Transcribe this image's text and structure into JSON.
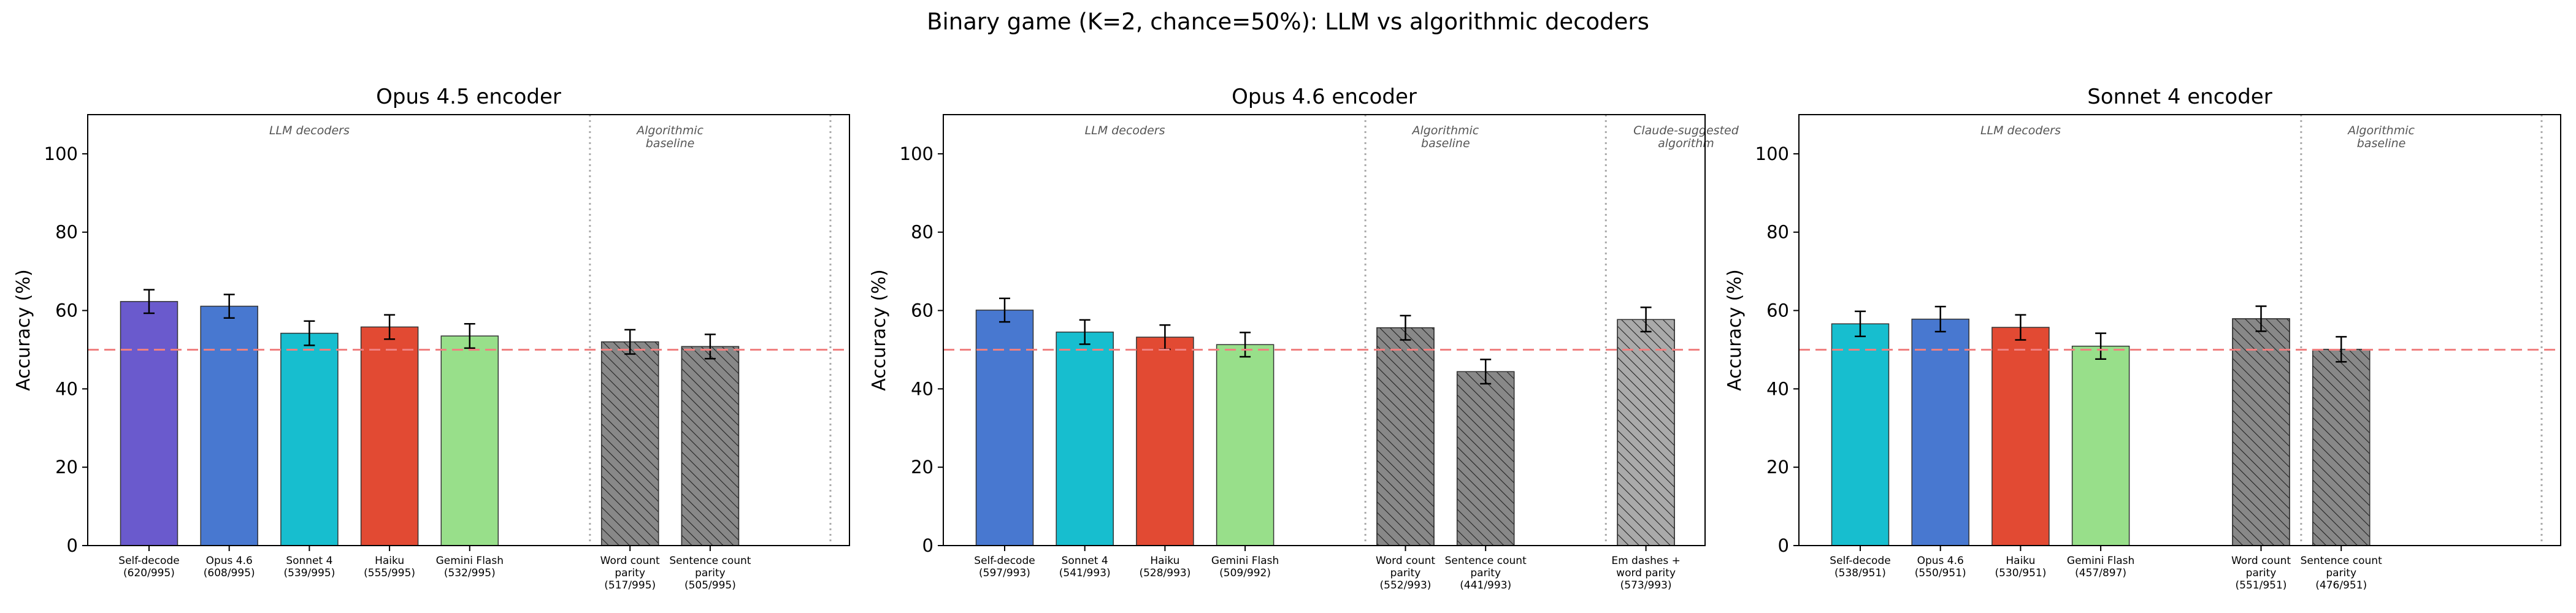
{
  "figure_title": "Binary game (K=2, chance=50%): LLM vs algorithmic decoders",
  "colors": {
    "purple": "#6a5acd",
    "blue": "#4878d0",
    "cyan": "#17becf",
    "red": "#e24a33",
    "green": "#98df8a",
    "gray": "#888888",
    "light_gray": "#aaaaaa",
    "chance_line": "#f08080"
  },
  "chart_data": [
    {
      "type": "bar",
      "title": "Opus 4.5 encoder",
      "ylabel": "Accuracy (%)",
      "xlabel": "",
      "ylim": [
        0,
        110
      ],
      "yticks": [
        0,
        20,
        40,
        60,
        80,
        100
      ],
      "chance_line": 50,
      "grid": false,
      "group_labels": [
        {
          "text": "LLM decoders",
          "slot_center": 2
        },
        {
          "text": "Algorithmic\nbaseline",
          "slot_center": 6.5
        }
      ],
      "separators_at": [
        5.5,
        8.5
      ],
      "bars": [
        {
          "label": "Self-decode\n(620/995)",
          "slot": 0,
          "value": 62.3,
          "err": 3.0,
          "color": "purple",
          "hatch": false
        },
        {
          "label": "Opus 4.6\n(608/995)",
          "slot": 1,
          "value": 61.1,
          "err": 3.0,
          "color": "blue",
          "hatch": false
        },
        {
          "label": "Sonnet 4\n(539/995)",
          "slot": 2,
          "value": 54.2,
          "err": 3.1,
          "color": "cyan",
          "hatch": false
        },
        {
          "label": "Haiku\n(555/995)",
          "slot": 3,
          "value": 55.8,
          "err": 3.1,
          "color": "red",
          "hatch": false
        },
        {
          "label": "Gemini Flash\n(532/995)",
          "slot": 4,
          "value": 53.5,
          "err": 3.1,
          "color": "green",
          "hatch": false
        },
        {
          "label": "Word count\nparity\n(517/995)",
          "slot": 6,
          "value": 52.0,
          "err": 3.1,
          "color": "gray",
          "hatch": true
        },
        {
          "label": "Sentence count\nparity\n(505/995)",
          "slot": 7,
          "value": 50.8,
          "err": 3.1,
          "color": "gray",
          "hatch": true
        }
      ]
    },
    {
      "type": "bar",
      "title": "Opus 4.6 encoder",
      "ylabel": "Accuracy (%)",
      "xlabel": "",
      "ylim": [
        0,
        110
      ],
      "yticks": [
        0,
        20,
        40,
        60,
        80,
        100
      ],
      "chance_line": 50,
      "grid": false,
      "group_labels": [
        {
          "text": "LLM decoders",
          "slot_center": 1.5
        },
        {
          "text": "Algorithmic\nbaseline",
          "slot_center": 5.5
        },
        {
          "text": "Claude-suggested\nalgorithm",
          "slot_center": 8.5
        }
      ],
      "separators_at": [
        4.5,
        7.5
      ],
      "bars": [
        {
          "label": "Self-decode\n(597/993)",
          "slot": 0,
          "value": 60.1,
          "err": 3.0,
          "color": "blue",
          "hatch": false
        },
        {
          "label": "Sonnet 4\n(541/993)",
          "slot": 1,
          "value": 54.5,
          "err": 3.1,
          "color": "cyan",
          "hatch": false
        },
        {
          "label": "Haiku\n(528/993)",
          "slot": 2,
          "value": 53.2,
          "err": 3.1,
          "color": "red",
          "hatch": false
        },
        {
          "label": "Gemini Flash\n(509/992)",
          "slot": 3,
          "value": 51.3,
          "err": 3.1,
          "color": "green",
          "hatch": false
        },
        {
          "label": "Word count\nparity\n(552/993)",
          "slot": 5,
          "value": 55.6,
          "err": 3.1,
          "color": "gray",
          "hatch": true
        },
        {
          "label": "Sentence count\nparity\n(441/993)",
          "slot": 6,
          "value": 44.4,
          "err": 3.1,
          "color": "gray",
          "hatch": true
        },
        {
          "label": "Em dashes +\nword parity\n(573/993)",
          "slot": 8,
          "value": 57.7,
          "err": 3.1,
          "color": "light_gray",
          "hatch": true
        }
      ]
    },
    {
      "type": "bar",
      "title": "Sonnet 4 encoder",
      "ylabel": "Accuracy (%)",
      "xlabel": "",
      "ylim": [
        0,
        110
      ],
      "yticks": [
        0,
        20,
        40,
        60,
        80,
        100
      ],
      "chance_line": 50,
      "grid": false,
      "group_labels": [
        {
          "text": "LLM decoders",
          "slot_center": 2
        },
        {
          "text": "Algorithmic\nbaseline",
          "slot_center": 6.5
        }
      ],
      "separators_at": [
        5.5,
        8.5
      ],
      "bars": [
        {
          "label": "Self-decode\n(538/951)",
          "slot": 0,
          "value": 56.6,
          "err": 3.2,
          "color": "cyan",
          "hatch": false
        },
        {
          "label": "Opus 4.6\n(550/951)",
          "slot": 1,
          "value": 57.8,
          "err": 3.2,
          "color": "blue",
          "hatch": false
        },
        {
          "label": "Haiku\n(530/951)",
          "slot": 2,
          "value": 55.7,
          "err": 3.2,
          "color": "red",
          "hatch": false
        },
        {
          "label": "Gemini Flash\n(457/897)",
          "slot": 3,
          "value": 50.9,
          "err": 3.3,
          "color": "green",
          "hatch": false
        },
        {
          "label": "Word count\nparity\n(551/951)",
          "slot": 5,
          "value": 57.9,
          "err": 3.2,
          "color": "gray",
          "hatch": true
        },
        {
          "label": "Sentence count\nparity\n(476/951)",
          "slot": 6,
          "value": 50.1,
          "err": 3.2,
          "color": "gray",
          "hatch": true
        }
      ]
    }
  ]
}
